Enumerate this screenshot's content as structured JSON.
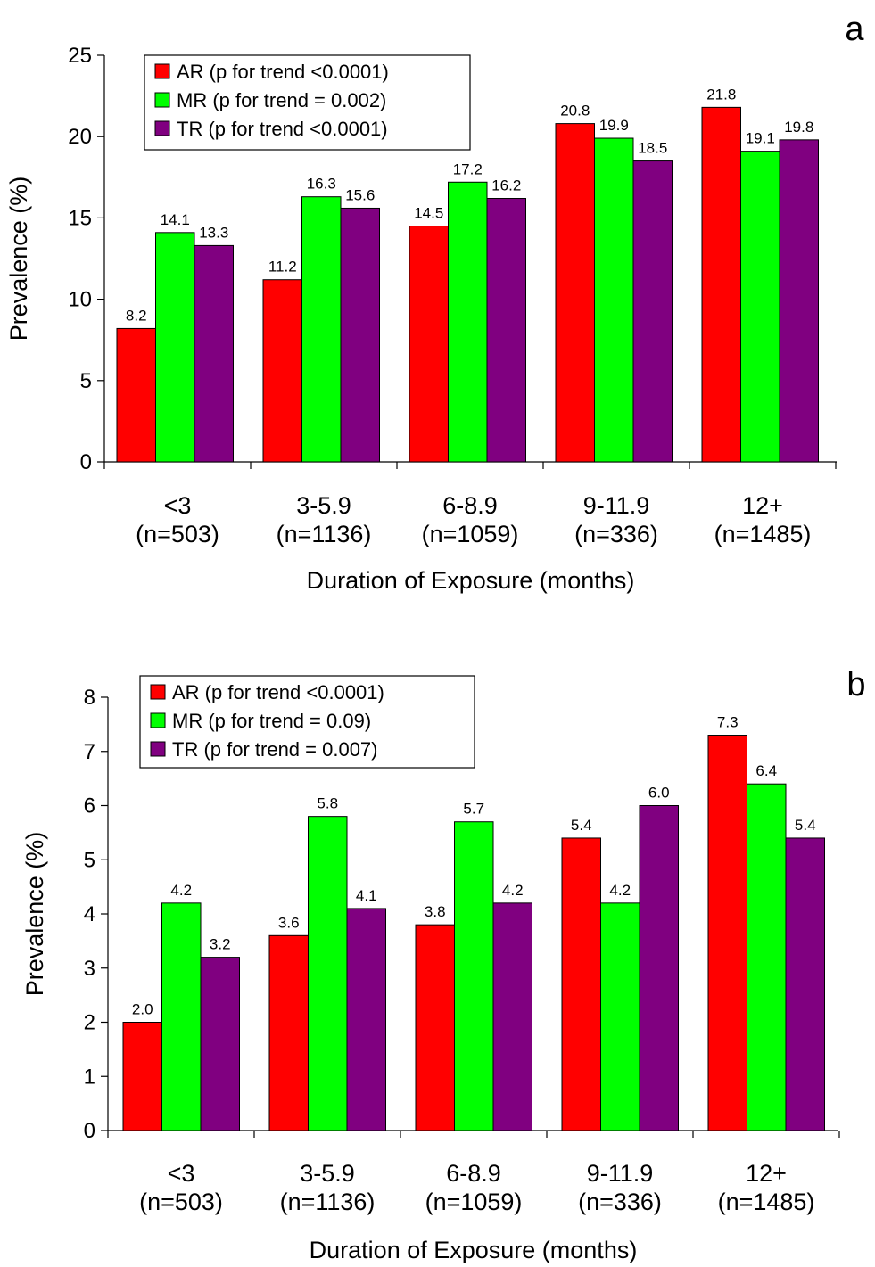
{
  "chart_data": [
    {
      "panel": "a",
      "type": "bar",
      "ylabel": "Prevalence (%)",
      "xlabel": "Duration of Exposure (months)",
      "ylim": [
        0,
        25
      ],
      "yticks": [
        0,
        5,
        10,
        15,
        20,
        25
      ],
      "categories": [
        {
          "label": "<3",
          "n": "(n=503)"
        },
        {
          "label": "3-5.9",
          "n": "(n=1136)"
        },
        {
          "label": "6-8.9",
          "n": "(n=1059)"
        },
        {
          "label": "9-11.9",
          "n": "(n=336)"
        },
        {
          "label": "12+",
          "n": "(n=1485)"
        }
      ],
      "series": [
        {
          "name": "AR (p for trend <0.0001)",
          "color": "#ff0000",
          "values": [
            8.2,
            11.2,
            14.5,
            20.8,
            21.8
          ],
          "labels": [
            "8.2",
            "11.2",
            "14.5",
            "20.8",
            "21.8"
          ]
        },
        {
          "name": "MR (p for trend = 0.002)",
          "color": "#00ff00",
          "values": [
            14.1,
            16.3,
            17.2,
            19.9,
            19.1
          ],
          "labels": [
            "14.1",
            "16.3",
            "17.2",
            "19.9",
            "19.1"
          ]
        },
        {
          "name": "TR (p for trend <0.0001)",
          "color": "#800080",
          "values": [
            13.3,
            15.6,
            16.2,
            18.5,
            19.8
          ],
          "labels": [
            "13.3",
            "15.6",
            "16.2",
            "18.5",
            "19.8"
          ]
        }
      ],
      "legend_position": "top-left",
      "grid": false
    },
    {
      "panel": "b",
      "type": "bar",
      "ylabel": "Prevalence (%)",
      "xlabel": "Duration of Exposure (months)",
      "ylim": [
        0,
        8
      ],
      "yticks": [
        0,
        1,
        2,
        3,
        4,
        5,
        6,
        7,
        8
      ],
      "categories": [
        {
          "label": "<3",
          "n": "(n=503)"
        },
        {
          "label": "3-5.9",
          "n": "(n=1136)"
        },
        {
          "label": "6-8.9",
          "n": "(n=1059)"
        },
        {
          "label": "9-11.9",
          "n": "(n=336)"
        },
        {
          "label": "12+",
          "n": "(n=1485)"
        }
      ],
      "series": [
        {
          "name": "AR (p for trend <0.0001)",
          "color": "#ff0000",
          "values": [
            2.0,
            3.6,
            3.8,
            5.4,
            7.3
          ],
          "labels": [
            "2.0",
            "3.6",
            "3.8",
            "5.4",
            "7.3"
          ]
        },
        {
          "name": "MR (p for trend = 0.09)",
          "color": "#00ff00",
          "values": [
            4.2,
            5.8,
            5.7,
            4.2,
            6.4
          ],
          "labels": [
            "4.2",
            "5.8",
            "5.7",
            "4.2",
            "6.4"
          ]
        },
        {
          "name": "TR (p for trend = 0.007)",
          "color": "#800080",
          "values": [
            3.2,
            4.1,
            4.2,
            6.0,
            5.4
          ],
          "labels": [
            "3.2",
            "4.1",
            "4.2",
            "6.0",
            "5.4"
          ]
        }
      ],
      "legend_position": "top-left",
      "grid": false
    }
  ]
}
